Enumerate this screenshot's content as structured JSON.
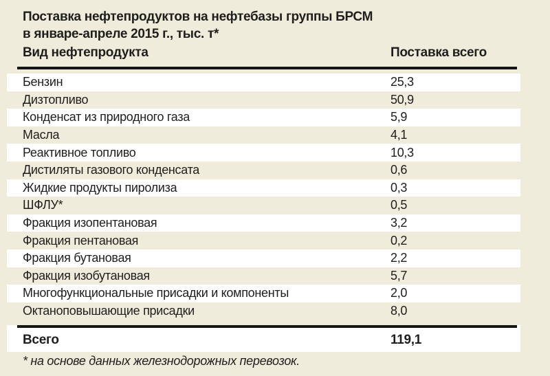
{
  "table": {
    "title_line1": "Поставка нефтепродуктов на нефтебазы группы БРСМ",
    "title_line2": "в январе-апреле 2015 г., тыс. т*",
    "col_product": "Вид нефтепродукта",
    "col_total": "Поставка всего",
    "rows": [
      {
        "product": "Бензин",
        "value": "25,3"
      },
      {
        "product": "Дизтопливо",
        "value": "50,9"
      },
      {
        "product": "Конденсат из природного газа",
        "value": "5,9"
      },
      {
        "product": "Масла",
        "value": "4,1"
      },
      {
        "product": "Реактивное топливо",
        "value": "10,3"
      },
      {
        "product": "Дистиляты газового конденсата",
        "value": "0,6"
      },
      {
        "product": "Жидкие продукты пиролиза",
        "value": "0,3"
      },
      {
        "product": "ШФЛУ*",
        "value": "0,5"
      },
      {
        "product": "Фракция изопентановая",
        "value": "3,2"
      },
      {
        "product": "Фракция пентановая",
        "value": "0,2"
      },
      {
        "product": "Фракция бутановая",
        "value": "2,2"
      },
      {
        "product": "Фракция изобутановая",
        "value": "5,7"
      },
      {
        "product": "Многофункциональные присадки и компоненты",
        "value": "2,0"
      },
      {
        "product": "Октаноповышающие присадки",
        "value": "8,0"
      }
    ],
    "total_label": "Всего",
    "total_value": "119,1",
    "footnote": "* на основе данных железнодорожных перевозок."
  },
  "colors": {
    "background": "#F0ECDC",
    "stripe": "#FFFFFF",
    "rule": "#161614",
    "text": "#1E1E1C"
  },
  "chart_data": {
    "type": "table",
    "title": "Поставка нефтепродуктов на нефтебазы группы БРСМ в январе-апреле 2015 г., тыс. т*",
    "columns": [
      "Вид нефтепродукта",
      "Поставка всего"
    ],
    "categories": [
      "Бензин",
      "Дизтопливо",
      "Конденсат из природного газа",
      "Масла",
      "Реактивное топливо",
      "Дистиляты газового конденсата",
      "Жидкие продукты пиролиза",
      "ШФЛУ*",
      "Фракция изопентановая",
      "Фракция пентановая",
      "Фракция бутановая",
      "Фракция изобутановая",
      "Многофункциональные присадки и компоненты",
      "Октаноповышающие присадки"
    ],
    "values": [
      25.3,
      50.9,
      5.9,
      4.1,
      10.3,
      0.6,
      0.3,
      0.5,
      3.2,
      0.2,
      2.2,
      5.7,
      2.0,
      8.0
    ],
    "total": {
      "label": "Всего",
      "value": 119.1
    },
    "footnote": "* на основе данных железнодорожных перевозок.",
    "units": "тыс. т"
  }
}
